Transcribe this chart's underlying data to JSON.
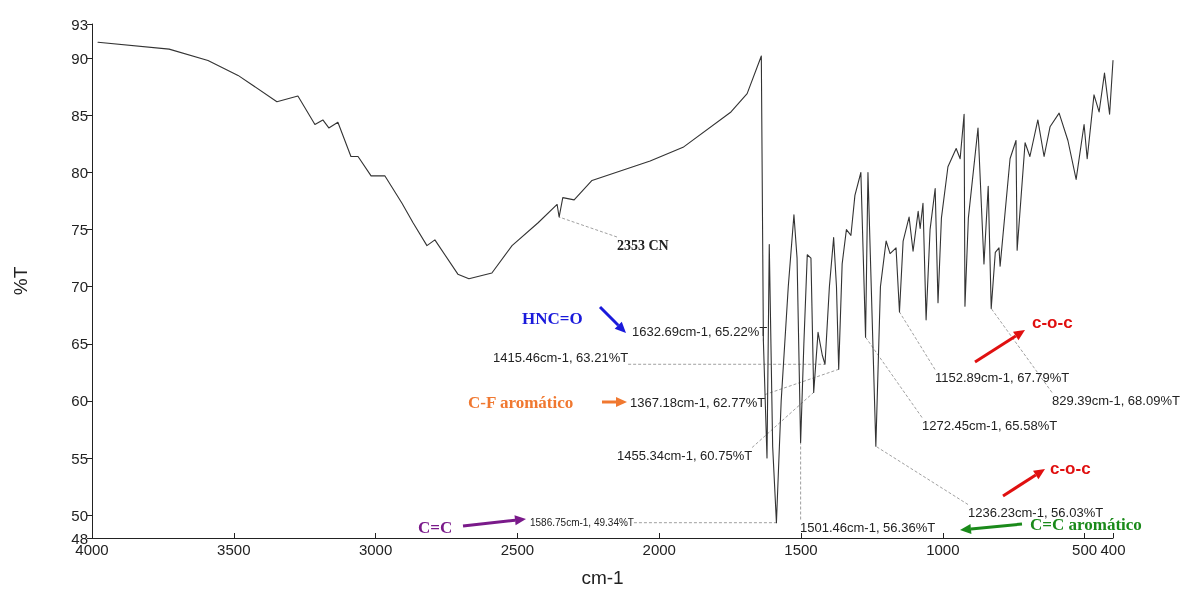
{
  "chart_data": {
    "type": "line",
    "xlabel": "cm-1",
    "ylabel": "%T",
    "xlim": [
      4000,
      400
    ],
    "xticks": [
      4000,
      3500,
      3000,
      2500,
      2000,
      1500,
      1000,
      500,
      400
    ],
    "ylim": [
      48,
      93
    ],
    "yticks": [
      48,
      50,
      55,
      60,
      65,
      70,
      75,
      80,
      85,
      90,
      93
    ],
    "grid": false,
    "marker": "none",
    "line_style": "solid",
    "series": [
      {
        "color": "#333333",
        "x": [
          3979,
          3728,
          3591,
          3485,
          3348,
          3274,
          3214,
          3186,
          3165,
          3133,
          3087,
          3062,
          3016,
          2967,
          2907,
          2868,
          2819,
          2791,
          2710,
          2671,
          2590,
          2519,
          2427,
          2360,
          2353,
          2340,
          2300,
          2237,
          2032,
          1916,
          1747,
          1690,
          1640,
          1632.69,
          1620,
          1612,
          1600,
          1586.75,
          1570,
          1545,
          1525,
          1514,
          1501.46,
          1490,
          1478,
          1465,
          1455.34,
          1440,
          1425,
          1415.46,
          1400,
          1385,
          1375,
          1367.18,
          1355,
          1340,
          1324,
          1310,
          1289,
          1272.45,
          1264,
          1236.23,
          1220,
          1200,
          1186,
          1165,
          1152.89,
          1140,
          1119,
          1105,
          1087,
          1080,
          1070,
          1059,
          1045,
          1027,
          1017,
          1005,
          982,
          953,
          939,
          925,
          922,
          910,
          876,
          855,
          840,
          829.39,
          815,
          802,
          798,
          763,
          742,
          738,
          710,
          693,
          665,
          643,
          622,
          590,
          559,
          530,
          502,
          491,
          467,
          449,
          430,
          412,
          400
        ],
        "values": [
          91.4,
          90.8,
          89.8,
          88.5,
          86.2,
          86.7,
          84.2,
          84.6,
          83.9,
          84.4,
          81.4,
          81.4,
          79.7,
          79.7,
          77.3,
          75.6,
          73.6,
          74.1,
          71.1,
          70.7,
          71.2,
          73.6,
          75.6,
          77.2,
          76.1,
          77.8,
          77.6,
          79.3,
          81.0,
          82.2,
          85.3,
          86.9,
          90.2,
          65.22,
          55.0,
          73.7,
          56.0,
          49.34,
          60.0,
          70.0,
          76.3,
          72.5,
          56.36,
          65.0,
          72.8,
          72.5,
          60.75,
          66.0,
          64.0,
          63.21,
          70.0,
          74.3,
          70.0,
          62.77,
          72.0,
          75.0,
          74.5,
          78.0,
          80.0,
          65.58,
          80.0,
          56.03,
          70.0,
          74.0,
          72.9,
          73.4,
          67.79,
          74.0,
          76.1,
          73.1,
          76.6,
          75.1,
          77.3,
          67.1,
          75.0,
          78.6,
          68.6,
          76.0,
          80.5,
          82.1,
          81.2,
          85.1,
          68.3,
          76.0,
          83.9,
          72.0,
          78.8,
          68.09,
          73.0,
          73.4,
          71.8,
          81.2,
          82.8,
          73.2,
          82.6,
          81.4,
          84.6,
          81.4,
          84.0,
          85.2,
          82.8,
          79.4,
          84.2,
          81.2,
          86.8,
          85.3,
          88.7,
          85.1,
          89.8
        ]
      }
    ],
    "annotations": [
      {
        "text": "2353 CN",
        "x": 2353,
        "y": 76.1
      },
      {
        "text": "1632.69cm-1, 65.22%T",
        "x": 1632.69,
        "y": 65.22
      },
      {
        "text": "1415.46cm-1, 63.21%T",
        "x": 1415.46,
        "y": 63.21
      },
      {
        "text": "1367.18cm-1, 62.77%T",
        "x": 1367.18,
        "y": 62.77
      },
      {
        "text": "1455.34cm-1, 60.75%T",
        "x": 1455.34,
        "y": 60.75
      },
      {
        "text": "1586.75cm-1, 49.34%T",
        "x": 1586.75,
        "y": 49.34
      },
      {
        "text": "1501.46cm-1, 56.36%T",
        "x": 1501.46,
        "y": 56.36
      },
      {
        "text": "1236.23cm-1, 56.03%T",
        "x": 1236.23,
        "y": 56.03
      },
      {
        "text": "1272.45cm-1, 65.58%T",
        "x": 1272.45,
        "y": 65.58
      },
      {
        "text": "1152.89cm-1, 67.79%T",
        "x": 1152.89,
        "y": 67.79
      },
      {
        "text": "829.39cm-1, 68.09%T",
        "x": 829.39,
        "y": 68.09
      },
      "HNC=O",
      "C-F aromático",
      "C=C",
      "C=C aromático",
      "c-o-c",
      "c-o-c"
    ]
  }
}
